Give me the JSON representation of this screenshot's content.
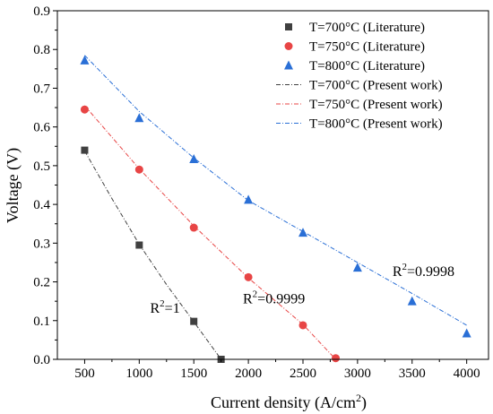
{
  "chart_data": {
    "type": "scatter",
    "xlabel_main": "Current density (A/cm",
    "xlabel_sup": "2",
    "xlabel_tail": ")",
    "ylabel": "Voltage (V)",
    "xlim": [
      250,
      4200
    ],
    "ylim": [
      0,
      0.9
    ],
    "xticks": [
      500,
      1000,
      1500,
      2000,
      2500,
      3000,
      3500,
      4000
    ],
    "yticks": [
      0.0,
      0.1,
      0.2,
      0.3,
      0.4,
      0.5,
      0.6,
      0.7,
      0.8,
      0.9
    ],
    "legend_position": "top-right",
    "series": [
      {
        "name": "T=700°C (Literature)",
        "kind": "scatter",
        "marker": "square",
        "color": "#404040",
        "x": [
          500,
          1000,
          1500,
          1750
        ],
        "y": [
          0.54,
          0.295,
          0.098,
          0.0
        ]
      },
      {
        "name": "T=750°C (Literature)",
        "kind": "scatter",
        "marker": "circle",
        "color": "#e84545",
        "x": [
          500,
          1000,
          1500,
          2000,
          2500,
          2800
        ],
        "y": [
          0.645,
          0.49,
          0.34,
          0.212,
          0.088,
          0.003
        ]
      },
      {
        "name": "T=800°C (Literature)",
        "kind": "scatter",
        "marker": "triangle",
        "color": "#2a6fd6",
        "x": [
          500,
          1000,
          1500,
          2000,
          2500,
          3000,
          3500,
          4000
        ],
        "y": [
          0.772,
          0.623,
          0.517,
          0.412,
          0.327,
          0.237,
          0.15,
          0.067
        ]
      },
      {
        "name": "T=700°C (Present work)",
        "kind": "line",
        "color": "#404040",
        "x": [
          500,
          750,
          1000,
          1250,
          1500,
          1750
        ],
        "y": [
          0.538,
          0.415,
          0.297,
          0.193,
          0.097,
          0.0
        ]
      },
      {
        "name": "T=750°C (Present work)",
        "kind": "line",
        "color": "#e84545",
        "x": [
          500,
          1000,
          1500,
          2000,
          2500,
          2800
        ],
        "y": [
          0.655,
          0.492,
          0.345,
          0.21,
          0.09,
          0.0
        ]
      },
      {
        "name": "T=800°C (Present work)",
        "kind": "line",
        "color": "#2a6fd6",
        "x": [
          500,
          1000,
          1500,
          2000,
          2500,
          3000,
          3500,
          4000
        ],
        "y": [
          0.785,
          0.64,
          0.52,
          0.41,
          0.33,
          0.25,
          0.17,
          0.088
        ]
      }
    ],
    "annotations": [
      {
        "prefix": "R",
        "sup": "2",
        "suffix": "=1",
        "x": 1100,
        "y": 0.12
      },
      {
        "prefix": "R",
        "sup": "2",
        "suffix": "=0.9999",
        "x": 1950,
        "y": 0.145
      },
      {
        "prefix": "R",
        "sup": "2",
        "suffix": "=0.9998",
        "x": 3320,
        "y": 0.215
      }
    ]
  }
}
